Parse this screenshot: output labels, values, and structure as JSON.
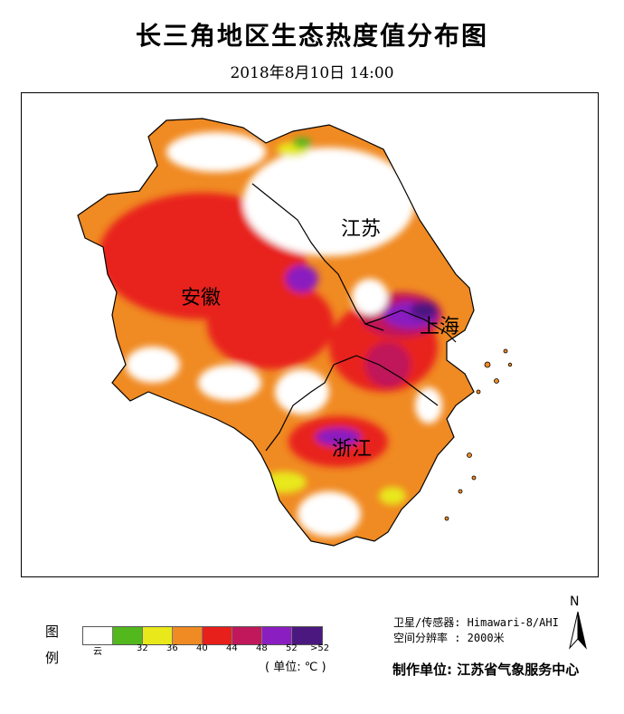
{
  "title": "长三角地区生态热度值分布图",
  "subtitle": "2018年8月10日  14:00",
  "map": {
    "regions": [
      {
        "key": "jiangsu",
        "label": "江苏"
      },
      {
        "key": "anhui",
        "label": "安徽"
      },
      {
        "key": "shanghai",
        "label": "上海"
      },
      {
        "key": "zhejiang",
        "label": "浙江"
      }
    ]
  },
  "legend": {
    "title_top": "图",
    "title_bottom": "例",
    "classes": [
      {
        "label": "云",
        "color": "#ffffff"
      },
      {
        "label": "32",
        "color": "#52b81e"
      },
      {
        "label": "36",
        "color": "#e8e81a"
      },
      {
        "label": "40",
        "color": "#f08a22"
      },
      {
        "label": "44",
        "color": "#e8201c"
      },
      {
        "label": "48",
        "color": "#c0185a"
      },
      {
        "label": "52",
        "color": "#8a1ec0"
      },
      {
        "label": ">52",
        "color": "#4b1880"
      }
    ],
    "unit": "( 单位: ℃ )"
  },
  "metadata": {
    "satellite_line": "卫星/传感器: Himawari-8/AHI",
    "resolution_line": "空间分辨率 : 2000米",
    "producer": "制作单位: 江苏省气象服务中心"
  },
  "north_arrow": {
    "label": "N"
  }
}
